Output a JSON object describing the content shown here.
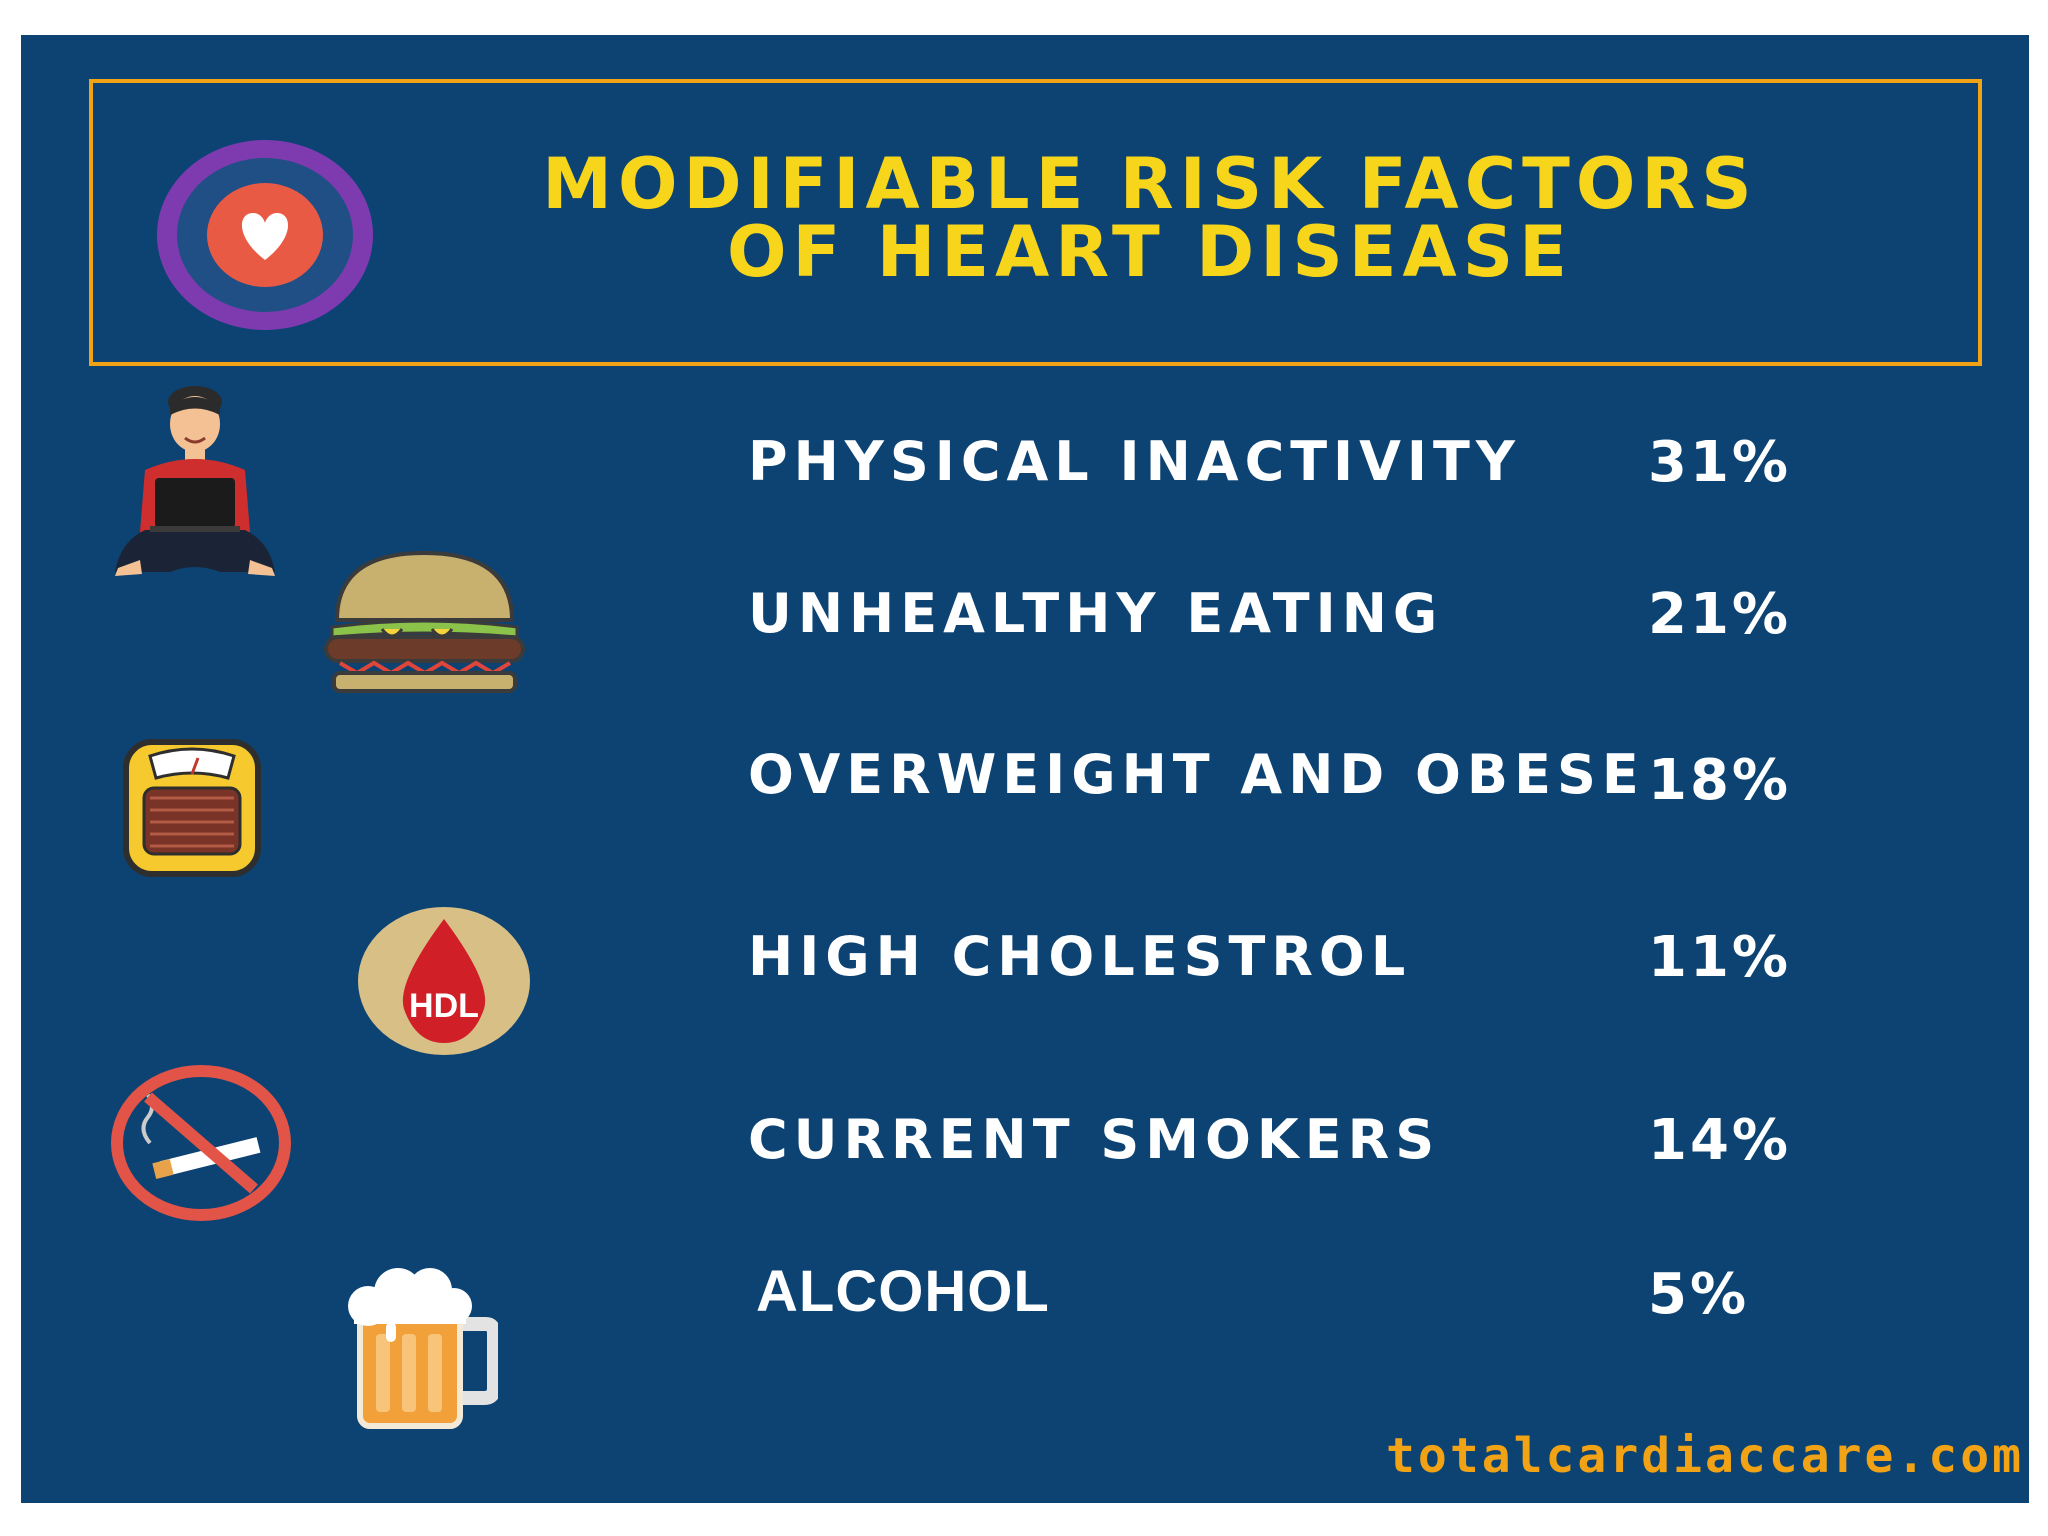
{
  "title": {
    "line1": "MODIFIABLE RISK FACTORS",
    "line2": "OF HEART DISEASE"
  },
  "colors": {
    "background": "#0c4373",
    "title_text": "#f7d51b",
    "border": "#f1a315",
    "footer": "#f1a315",
    "item_text": "#ffffff"
  },
  "items": [
    {
      "label": "PHYSICAL INACTIVITY",
      "value": "31%",
      "icon": "person-laptop-icon"
    },
    {
      "label": "UNHEALTHY EATING",
      "value": "21%",
      "icon": "burger-icon"
    },
    {
      "label": "OVERWEIGHT AND OBESE",
      "value": "18%",
      "icon": "scale-icon"
    },
    {
      "label": "HIGH CHOLESTROL",
      "value": "11%",
      "icon": "hdl-drop-icon",
      "icon_text": "HDL"
    },
    {
      "label": "CURRENT SMOKERS",
      "value": "14%",
      "icon": "no-smoking-icon"
    },
    {
      "label": "ALCOHOL",
      "value": "5%",
      "icon": "beer-mug-icon"
    }
  ],
  "footer": {
    "url": "totalcardiaccare.com"
  }
}
